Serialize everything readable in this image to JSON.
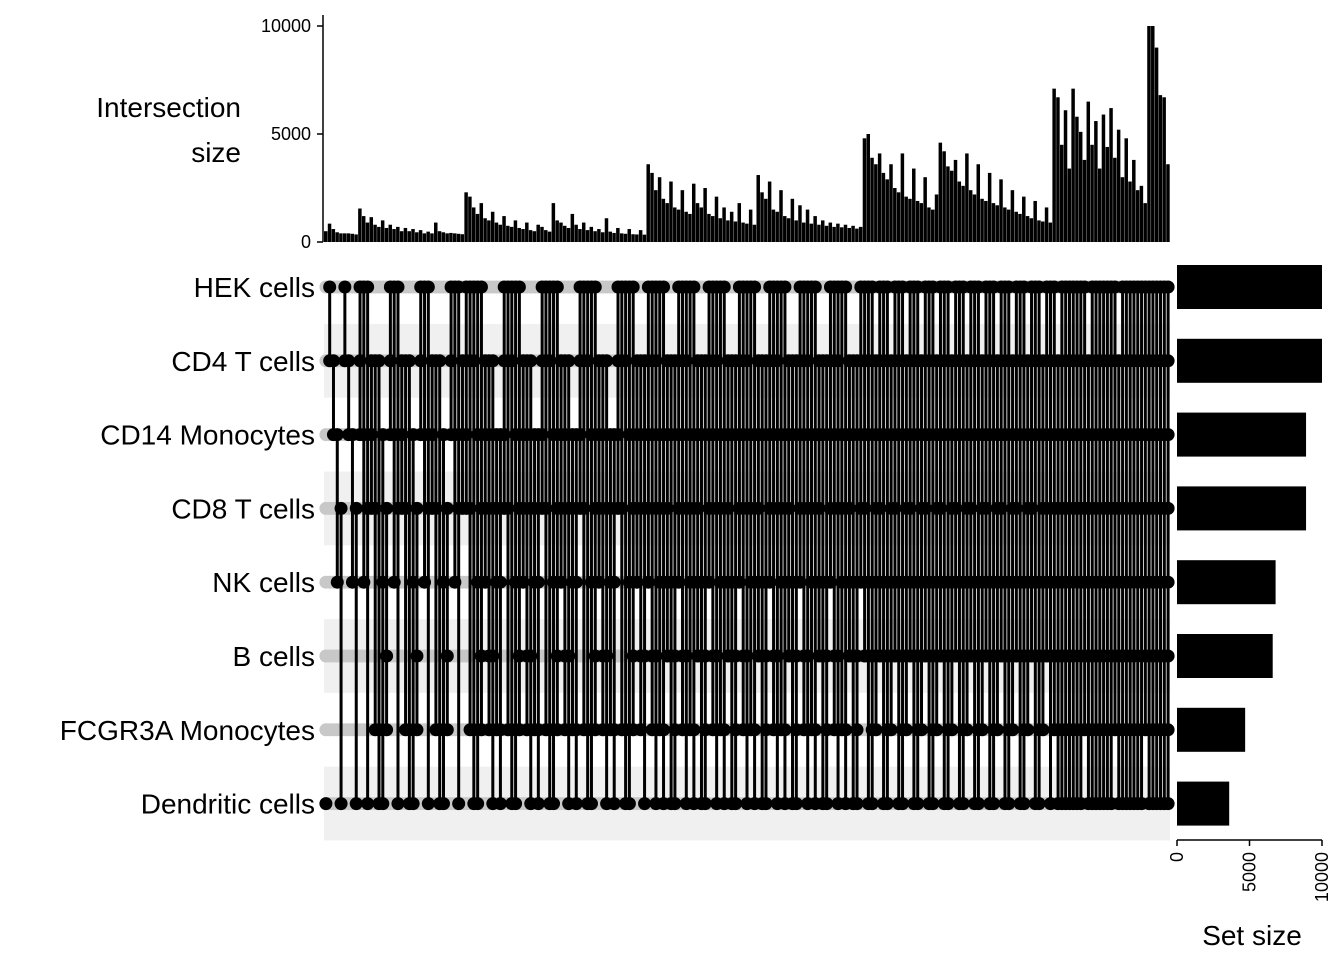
{
  "chart_data": {
    "type": "upset",
    "sets": [
      "HEK cells",
      "CD4 T cells",
      "CD14 Monocytes",
      "CD8 T cells",
      "NK cells",
      "B cells",
      "FCGR3A Monocytes",
      "Dendritic cells"
    ],
    "set_sizes": [
      10000,
      10000,
      8900,
      8900,
      6800,
      6600,
      4700,
      3600
    ],
    "intersection_axis": {
      "title_line1": "Intersection",
      "title_line2": "size",
      "ylim": [
        0,
        10200
      ],
      "ticks": [
        0,
        5000,
        10000
      ],
      "tick_labels": [
        "0",
        "5000",
        "10000"
      ]
    },
    "set_size_axis": {
      "title": "Set size",
      "xlim": [
        0,
        10200
      ],
      "ticks": [
        0,
        5000,
        10000
      ],
      "tick_labels": [
        "0",
        "5000",
        "10000"
      ]
    },
    "groups": [
      {
        "degree": 1,
        "members": [
          7
        ],
        "sizes": [
          500
        ]
      },
      {
        "degree": 2,
        "sizes": [
          850,
          600,
          450,
          400,
          400,
          400,
          380,
          350
        ]
      },
      {
        "degree": 3,
        "sizes": [
          1550,
          1200,
          900,
          1150,
          800,
          700,
          1000,
          650,
          800,
          600,
          700,
          500,
          650,
          500,
          600,
          450,
          550,
          400,
          480,
          400,
          900,
          500,
          450,
          400,
          420,
          400,
          380,
          360
        ]
      },
      {
        "degree": 4,
        "sizes": [
          2300,
          2100,
          1600,
          1300,
          1800,
          1100,
          1000,
          1400,
          900,
          800,
          1200,
          750,
          700,
          1000,
          650,
          600,
          900,
          550,
          500,
          800,
          700,
          550,
          480,
          1800,
          1000,
          900,
          750,
          650,
          1300,
          800,
          600,
          900,
          550,
          700,
          500,
          600,
          450,
          1100,
          480,
          420,
          650,
          400,
          380,
          600,
          360,
          350,
          550,
          340
        ]
      },
      {
        "degree": 5,
        "sizes": [
          3600,
          3200,
          2400,
          3000,
          2000,
          1800,
          2800,
          1600,
          1500,
          2400,
          1400,
          1300,
          2700,
          1800,
          1600,
          2500,
          1300,
          1200,
          2100,
          1100,
          1600,
          1000,
          1400,
          950,
          1800,
          900,
          850,
          1500,
          800,
          3100,
          2300,
          2000,
          2800,
          1500,
          1400,
          2400,
          1200,
          1100,
          2000,
          1000,
          1700,
          900,
          1500,
          850,
          1200,
          800,
          1000,
          750,
          900,
          700,
          850,
          680,
          800,
          650,
          750,
          620,
          700
        ]
      },
      {
        "degree": 6,
        "sizes": [
          4800,
          5000,
          3900,
          3600,
          4100,
          3200,
          2900,
          3600,
          2500,
          2300,
          4100,
          2100,
          2000,
          3400,
          1900,
          1800,
          3000,
          1600,
          1500,
          2200,
          4600,
          4200,
          3500,
          3300,
          3800,
          2800,
          2600,
          4100,
          2400,
          2200,
          3600,
          2000,
          1900,
          3200,
          1800,
          1700,
          2900,
          1600,
          1500,
          2400,
          1400,
          1300,
          2100,
          1200,
          1100,
          1900,
          1000,
          950,
          1600,
          900
        ]
      },
      {
        "degree": 7,
        "sizes": [
          7100,
          6700,
          4500,
          6100,
          3400,
          7100,
          5800,
          5100,
          3800,
          6500,
          4500,
          5600,
          3400,
          5900,
          4400,
          6200,
          3900,
          5200,
          3000,
          4800,
          2800,
          3800,
          2400,
          2600,
          1800
        ]
      },
      {
        "degree": 8,
        "sizes": [
          10000,
          10000,
          9000,
          6800,
          6700,
          3600
        ]
      }
    ]
  }
}
